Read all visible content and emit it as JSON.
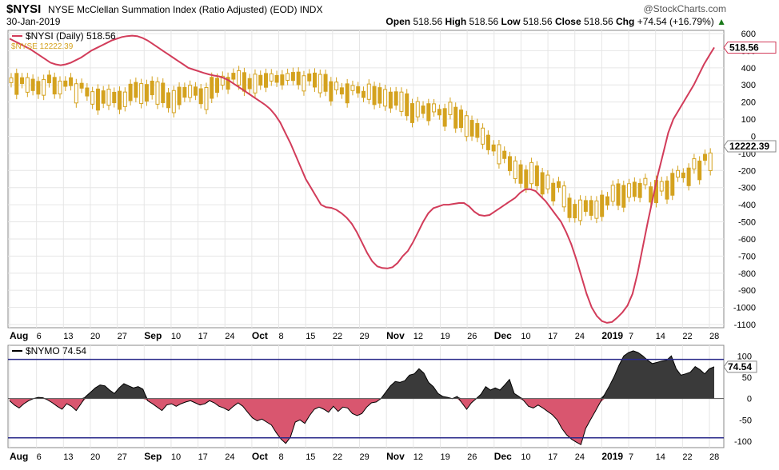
{
  "header": {
    "symbol": "$NYSI",
    "description": "NYSE McClellan Summation Index (Ratio Adjusted) (EOD)",
    "exchange": "INDX",
    "date": "30-Jan-2019",
    "brand": "@StockCharts.com",
    "open_label": "Open",
    "open": "518.56",
    "high_label": "High",
    "high": "518.56",
    "low_label": "Low",
    "low": "518.56",
    "close_label": "Close",
    "close": "518.56",
    "chg_label": "Chg",
    "chg": "+74.54 (+16.79%)",
    "up_arrow": "▲"
  },
  "colors": {
    "nysi_line": "#d23c5a",
    "nyse_candle": "#d4a21e",
    "nymo_positive": "#3a3a3a",
    "nymo_negative": "#d9566f",
    "threshold_line": "#2a2a8a",
    "grid": "#e6e6e6"
  },
  "chart_data": [
    {
      "type": "line",
      "title": "$NYSI (Daily) 518.56",
      "legend": [
        {
          "name": "$NYSI (Daily) 518.56",
          "color": "#d23c5a"
        },
        {
          "name": "$NYSE 12222.39",
          "color": "#d4a21e"
        }
      ],
      "x_axis_labels": [
        "Aug",
        "6",
        "13",
        "20",
        "27",
        "Sep",
        "10",
        "17",
        "24",
        "Oct",
        "8",
        "15",
        "22",
        "29",
        "Nov",
        "12",
        "19",
        "26",
        "Dec",
        "10",
        "17",
        "24",
        "2019",
        "7",
        "14",
        "22",
        "28"
      ],
      "y_ticks": [
        "600",
        "500",
        "400",
        "300",
        "200",
        "100",
        "0",
        "-100",
        "-200",
        "-300",
        "-400",
        "-500",
        "-600",
        "-700",
        "-800",
        "-900",
        "-1000",
        "-1100"
      ],
      "ylim": [
        -1100,
        600
      ],
      "last_value_label": "518.56",
      "nyse_last_label": "12222.39",
      "series": [
        {
          "name": "$NYSI (Daily)",
          "values": [
            570,
            555,
            540,
            525,
            510,
            490,
            470,
            450,
            430,
            420,
            415,
            420,
            430,
            445,
            460,
            480,
            500,
            515,
            530,
            545,
            560,
            570,
            580,
            585,
            588,
            585,
            575,
            560,
            540,
            520,
            500,
            480,
            460,
            440,
            420,
            400,
            390,
            380,
            370,
            362,
            355,
            350,
            340,
            325,
            305,
            285,
            265,
            245,
            225,
            205,
            185,
            160,
            125,
            80,
            20,
            -40,
            -110,
            -180,
            -250,
            -300,
            -350,
            -400,
            -415,
            -418,
            -430,
            -450,
            -475,
            -510,
            -560,
            -620,
            -680,
            -730,
            -760,
            -770,
            -772,
            -765,
            -740,
            -700,
            -670,
            -620,
            -560,
            -500,
            -450,
            -420,
            -410,
            -400,
            -400,
            -395,
            -390,
            -390,
            -410,
            -440,
            -460,
            -465,
            -460,
            -440,
            -420,
            -400,
            -380,
            -360,
            -330,
            -310,
            -310,
            -320,
            -350,
            -380,
            -420,
            -460,
            -500,
            -560,
            -630,
            -720,
            -820,
            -920,
            -1000,
            -1050,
            -1080,
            -1090,
            -1085,
            -1060,
            -1030,
            -990,
            -920,
            -800,
            -650,
            -500,
            -360,
            -220,
            -100,
            20,
            100,
            150,
            200,
            250,
            300,
            360,
            420,
            470,
            518.56
          ]
        }
      ]
    },
    {
      "type": "area",
      "title": "$NYMO 74.54",
      "legend": [
        {
          "name": "$NYMO 74.54",
          "color": "#000000"
        }
      ],
      "y_ticks": [
        "100",
        "50",
        "0",
        "-50",
        "-100"
      ],
      "ylim": [
        -115,
        125
      ],
      "reference_lines": [
        92,
        -92
      ],
      "last_value_label": "74.54",
      "series": [
        {
          "name": "$NYMO",
          "values": [
            -5,
            -15,
            -22,
            -12,
            -5,
            0,
            3,
            2,
            -3,
            -10,
            -18,
            -25,
            -12,
            -18,
            -28,
            -12,
            5,
            15,
            25,
            32,
            30,
            20,
            12,
            25,
            35,
            30,
            25,
            28,
            22,
            -5,
            -12,
            -20,
            -28,
            -15,
            -12,
            -18,
            -12,
            -8,
            -5,
            -10,
            -15,
            -12,
            -5,
            -10,
            -18,
            -22,
            -28,
            -18,
            -10,
            -18,
            -32,
            -45,
            -52,
            -48,
            -55,
            -62,
            -80,
            -95,
            -105,
            -90,
            -55,
            -50,
            -58,
            -40,
            -25,
            -20,
            -25,
            -32,
            -18,
            -30,
            -20,
            -22,
            -35,
            -40,
            -35,
            -20,
            -10,
            -8,
            0,
            15,
            30,
            40,
            38,
            42,
            55,
            58,
            70,
            60,
            38,
            28,
            12,
            5,
            3,
            0,
            5,
            -10,
            -25,
            -10,
            0,
            10,
            28,
            20,
            25,
            20,
            32,
            45,
            12,
            5,
            -5,
            -18,
            -22,
            -15,
            -22,
            -30,
            -38,
            -50,
            -70,
            -85,
            -95,
            -102,
            -108,
            -70,
            -50,
            -30,
            -10,
            10,
            30,
            52,
            78,
            100,
            108,
            112,
            108,
            100,
            90,
            82,
            85,
            88,
            90,
            100,
            70,
            55,
            58,
            62,
            75,
            68,
            58,
            70,
            74.54
          ]
        }
      ]
    }
  ]
}
